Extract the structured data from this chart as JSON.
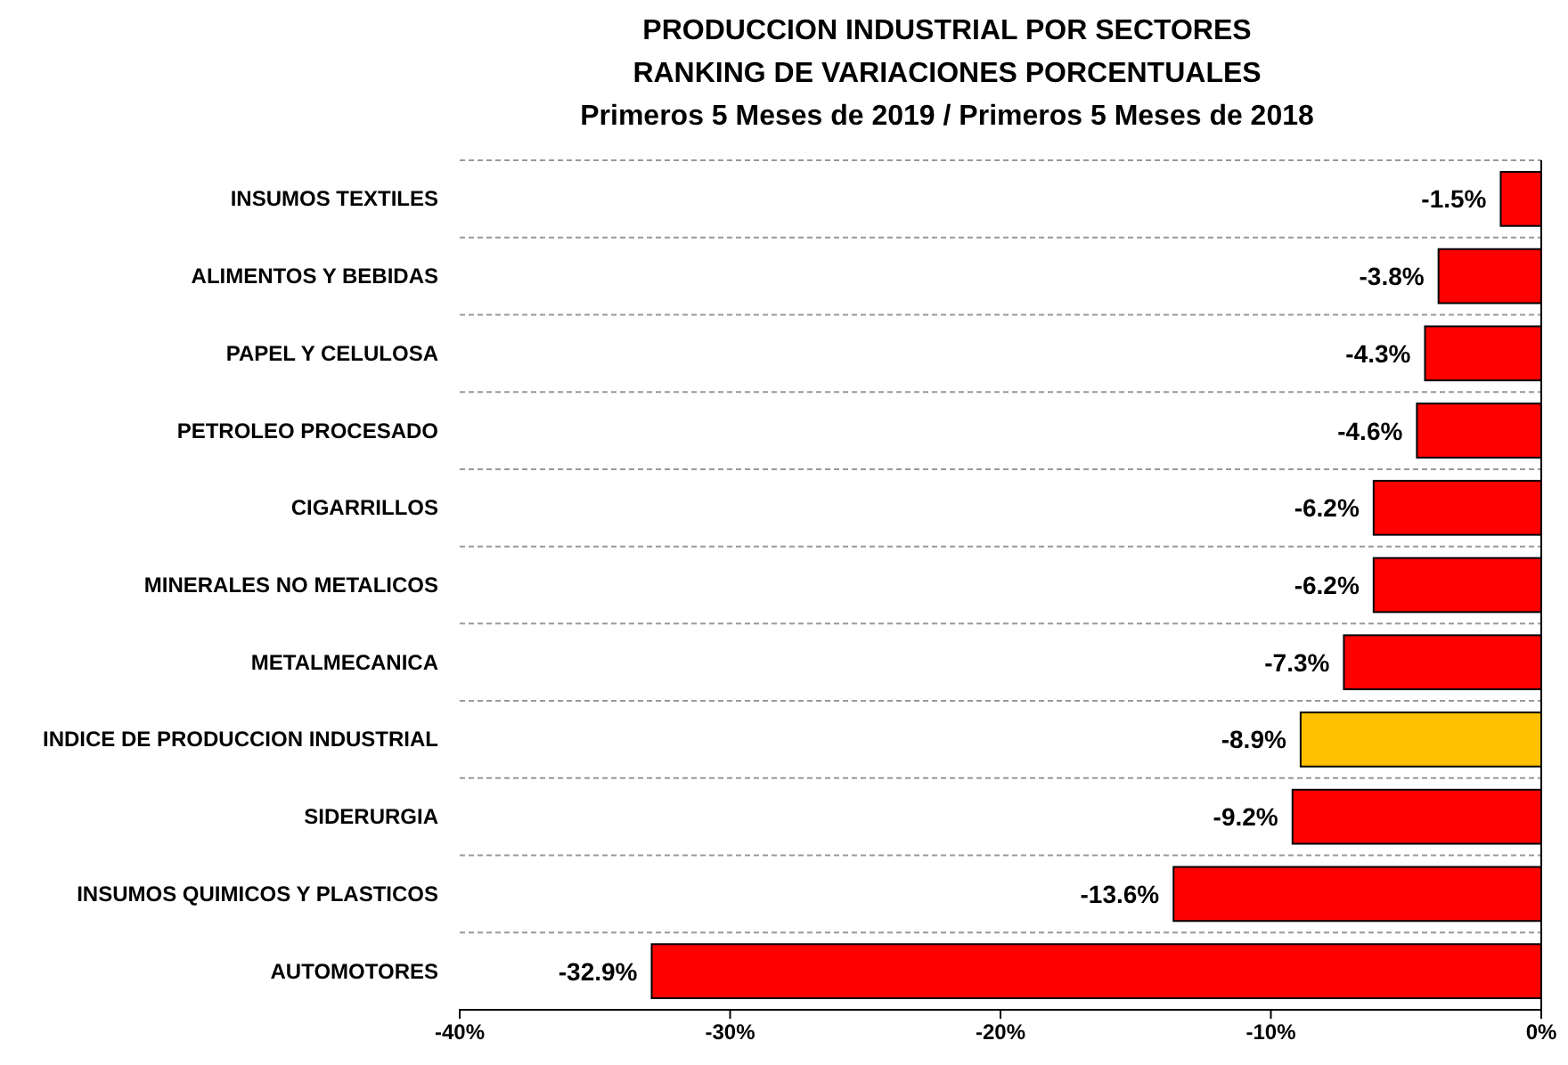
{
  "chart_data": {
    "type": "bar",
    "orientation": "horizontal",
    "title": "PRODUCCION INDUSTRIAL POR SECTORES",
    "subtitle": "RANKING DE VARIACIONES PORCENTUALES\nPrimeros 5 Meses de 2019 / Primeros 5 Meses de 2018",
    "categories": [
      "INSUMOS TEXTILES",
      "ALIMENTOS Y BEBIDAS",
      "PAPEL Y CELULOSA",
      "PETROLEO PROCESADO",
      "CIGARRILLOS",
      "MINERALES NO METALICOS",
      "METALMECANICA",
      "INDICE DE PRODUCCION INDUSTRIAL",
      "SIDERURGIA",
      "INSUMOS QUIMICOS Y PLASTICOS",
      "AUTOMOTORES"
    ],
    "values": [
      -1.5,
      -3.8,
      -4.3,
      -4.6,
      -6.2,
      -6.2,
      -7.3,
      -8.9,
      -9.2,
      -13.6,
      -32.9
    ],
    "value_labels": [
      "-1.5%",
      "-3.8%",
      "-4.3%",
      "-4.6%",
      "-6.2%",
      "-6.2%",
      "-7.3%",
      "-8.9%",
      "-9.2%",
      "-13.6%",
      "-32.9%"
    ],
    "colors": [
      "#ff0000",
      "#ff0000",
      "#ff0000",
      "#ff0000",
      "#ff0000",
      "#ff0000",
      "#ff0000",
      "#ffc000",
      "#ff0000",
      "#ff0000",
      "#ff0000"
    ],
    "xlim": [
      -40,
      0
    ],
    "xticks": [
      {
        "value": -40,
        "label": "-40%"
      },
      {
        "value": -30,
        "label": "-30%"
      },
      {
        "value": -20,
        "label": "-20%"
      },
      {
        "value": -10,
        "label": "-10%"
      },
      {
        "value": 0,
        "label": "0%"
      }
    ],
    "grid": "y"
  }
}
